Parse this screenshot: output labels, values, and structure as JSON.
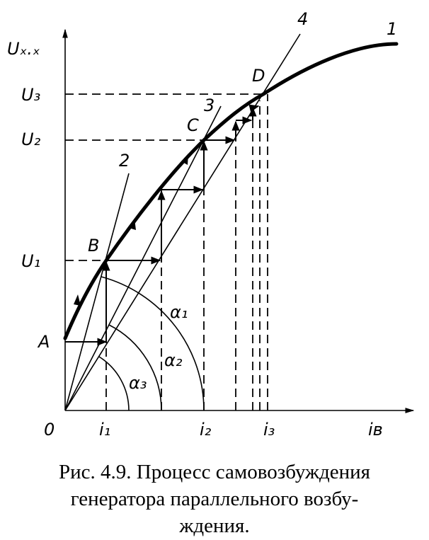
{
  "axes": {
    "y_label": "Uₓ.ₓ",
    "x_label": "iв",
    "origin": "0"
  },
  "y_levels": [
    "U₃",
    "U₂",
    "U₁"
  ],
  "x_levels": [
    "i₁",
    "i₂",
    "i₃"
  ],
  "points": [
    "A",
    "B",
    "C",
    "D"
  ],
  "curves": [
    "1",
    "2",
    "3",
    "4"
  ],
  "angles": [
    "α₁",
    "α₂",
    "α₃"
  ],
  "caption": [
    "Рис. 4.9. Процесс самовозбуждения",
    "генератора  параллельного  возбу-",
    "ждения."
  ]
}
